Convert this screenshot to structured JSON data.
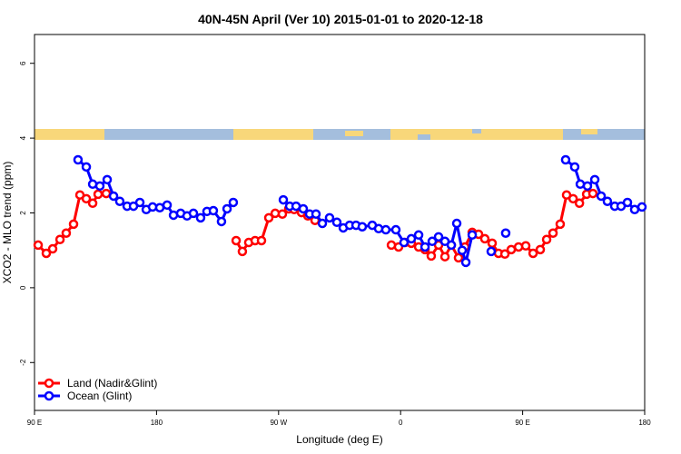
{
  "chart_data": {
    "type": "line",
    "title": "40N-45N April (Ver 10)   2015-01-01 to 2020-12-18",
    "xlabel": "Longitude (deg E)",
    "ylabel": "XCO2 - MLO trend (ppm)",
    "xlim": [
      90,
      540
    ],
    "ylim": [
      -3.28,
      6.77
    ],
    "xticks": [
      {
        "value": 90,
        "label": "90 E"
      },
      180,
      {
        "value": 270,
        "label": "90 W"
      },
      {
        "value": 360,
        "label": "0"
      },
      {
        "value": 450,
        "label": "90 E"
      },
      {
        "value": 540,
        "label": "180"
      }
    ],
    "yticks": [
      -2,
      0,
      2,
      4,
      6
    ],
    "legend": "bottom-left",
    "series": [
      {
        "name": "Land (Nadir&Glint)",
        "color": "#ff0000",
        "x": [
          92.7,
          98.7,
          103.4,
          108.8,
          113.4,
          118.8,
          123.5,
          128.2,
          132.9,
          136.9,
          142.9,
          null,
          238.7,
          243.3,
          248.0,
          252.7,
          257.4,
          262.8,
          267.5,
          272.8,
          277.5,
          281.5,
          286.9,
          291.6,
          296.9,
          null,
          353.2,
          358.5,
          363.2,
          367.9,
          373.3,
          378.0,
          382.6,
          388.0,
          392.7,
          397.4,
          402.7,
          407.4,
          412.8,
          417.5,
          422.1,
          427.5,
          432.2,
          436.9,
          441.6,
          447.0,
          452.3,
          457.7,
          463.0,
          467.7,
          472.4,
          477.7,
          482.4,
          487.2,
          491.9,
          497.2,
          501.8
        ],
        "values": [
          1.14,
          0.92,
          1.04,
          1.29,
          1.46,
          1.7,
          2.48,
          2.38,
          2.26,
          2.5,
          2.52,
          null,
          1.26,
          0.97,
          1.21,
          1.26,
          1.26,
          1.87,
          1.99,
          1.97,
          2.11,
          2.09,
          2.01,
          1.92,
          1.8,
          null,
          1.14,
          1.09,
          1.21,
          1.19,
          1.09,
          1.02,
          0.85,
          1.14,
          0.83,
          1.14,
          0.8,
          1.09,
          1.48,
          1.43,
          1.31,
          1.19,
          0.92,
          0.9,
          1.02,
          1.09,
          1.12,
          0.92,
          1.02,
          1.29,
          1.46,
          1.7,
          2.48,
          2.38,
          2.26,
          2.5,
          2.52
        ]
      },
      {
        "name": "Ocean (Glint)",
        "color": "#0000ff",
        "x": [
          122.1,
          128.2,
          132.9,
          138.2,
          143.6,
          148.3,
          152.9,
          158.3,
          163.0,
          167.7,
          172.4,
          177.1,
          182.4,
          187.8,
          192.5,
          197.8,
          202.5,
          207.2,
          212.5,
          217.2,
          221.9,
          227.9,
          232.0,
          236.6,
          null,
          273.5,
          278.2,
          282.9,
          288.2,
          292.9,
          297.6,
          302.3,
          307.6,
          313.0,
          317.7,
          322.4,
          327.1,
          331.7,
          339.1,
          343.8,
          349.1,
          356.5,
          362.5,
          367.9,
          373.3,
          378.0,
          383.3,
          388.0,
          392.7,
          397.4,
          401.4,
          405.4,
          408.1,
          412.8,
          null,
          426.8,
          null,
          437.5,
          null,
          481.7,
          488.4,
          492.5,
          497.8,
          503.2,
          507.9,
          512.5,
          517.9,
          522.6,
          527.3,
          532.6,
          538.0
        ],
        "values": [
          3.42,
          3.23,
          2.77,
          2.72,
          2.89,
          2.45,
          2.31,
          2.18,
          2.18,
          2.28,
          2.09,
          2.16,
          2.14,
          2.21,
          1.94,
          1.99,
          1.92,
          1.99,
          1.87,
          2.04,
          2.06,
          1.77,
          2.11,
          2.28,
          null,
          2.35,
          2.18,
          2.18,
          2.11,
          1.97,
          1.97,
          1.72,
          1.87,
          1.75,
          1.6,
          1.67,
          1.67,
          1.63,
          1.67,
          1.58,
          1.55,
          1.55,
          1.21,
          1.31,
          1.41,
          1.09,
          1.24,
          1.36,
          1.24,
          1.14,
          1.72,
          1.0,
          0.68,
          1.41,
          null,
          0.97,
          null,
          1.46,
          null,
          3.42,
          3.23,
          2.77,
          2.72,
          2.89,
          2.45,
          2.31,
          2.18,
          2.18,
          2.28,
          2.09,
          2.16
        ]
      }
    ]
  }
}
